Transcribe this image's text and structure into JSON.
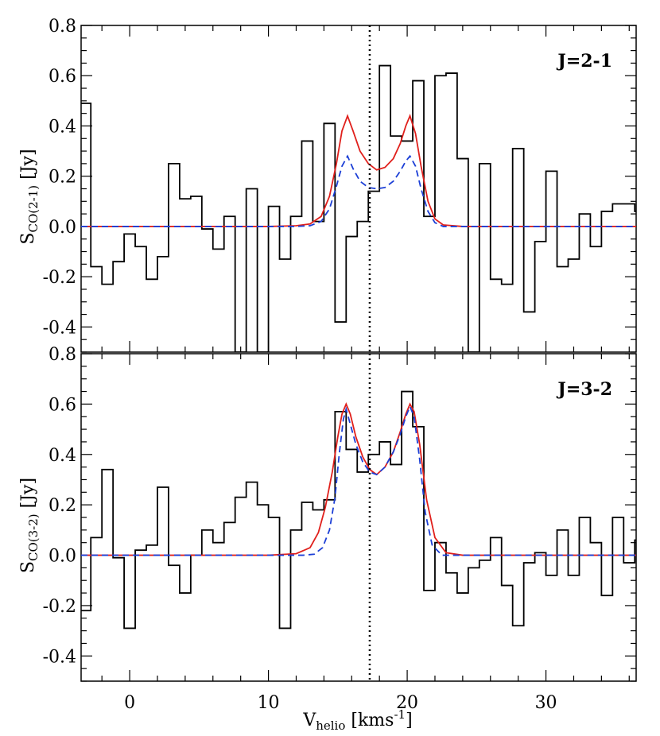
{
  "chart_data": [
    {
      "type": "line",
      "panel_label": "J=2-1",
      "ylabel": "S",
      "ylabel_sub": "CO(2-1)",
      "ylabel_unit": " [Jy]",
      "xlim": [
        -3.5,
        36.5
      ],
      "ylim": [
        -0.5,
        0.8
      ],
      "yticks": [
        "0.8",
        "0.6",
        "0.4",
        "0.2",
        "0.0",
        "-0.2",
        "-0.4"
      ],
      "ytick_values": [
        0.8,
        0.6,
        0.4,
        0.2,
        0.0,
        -0.2,
        -0.4
      ],
      "vline_x": 17.3,
      "series": [
        {
          "style": "step",
          "color": "#000000",
          "x": [
            -3.6,
            -2.8,
            -2.0,
            -1.2,
            -0.4,
            0.4,
            1.2,
            2.0,
            2.8,
            3.6,
            4.4,
            5.2,
            6.0,
            6.8,
            7.6,
            8.4,
            9.2,
            10.0,
            10.8,
            11.6,
            12.4,
            13.2,
            14.0,
            14.8,
            15.6,
            16.4,
            17.2,
            18.0,
            18.8,
            19.6,
            20.4,
            21.2,
            22.0,
            22.8,
            23.6,
            24.4,
            25.2,
            26.0,
            26.8,
            27.6,
            28.4,
            29.2,
            30.0,
            30.8,
            31.6,
            32.4,
            33.2,
            34.0,
            34.8,
            35.6,
            36.4
          ],
          "y": [
            0.49,
            -0.16,
            -0.23,
            -0.14,
            -0.03,
            -0.08,
            -0.21,
            -0.12,
            0.25,
            0.11,
            0.12,
            -0.01,
            -0.09,
            0.04,
            -0.5,
            0.15,
            -0.5,
            0.08,
            -0.13,
            0.04,
            0.34,
            0.02,
            0.41,
            -0.38,
            -0.04,
            0.02,
            0.14,
            0.64,
            0.36,
            0.34,
            0.58,
            0.04,
            0.6,
            0.61,
            0.27,
            -0.5,
            0.25,
            -0.21,
            -0.23,
            0.31,
            -0.34,
            -0.06,
            0.22,
            -0.16,
            -0.13,
            0.05,
            -0.08,
            0.06,
            0.09,
            0.09,
            0.06
          ],
          "end_x": 36.5
        },
        {
          "style": "solid",
          "color": "#e0201c",
          "x": [
            -3.5,
            10,
            12,
            13,
            13.8,
            14.4,
            14.9,
            15.3,
            15.7,
            16.1,
            16.6,
            17.2,
            17.8,
            18.4,
            19.0,
            19.5,
            19.9,
            20.2,
            20.6,
            21.0,
            21.5,
            22.0,
            22.6,
            24,
            36.5
          ],
          "y": [
            0.0,
            0.0,
            0.003,
            0.01,
            0.04,
            0.12,
            0.25,
            0.38,
            0.44,
            0.38,
            0.3,
            0.25,
            0.225,
            0.235,
            0.27,
            0.33,
            0.4,
            0.44,
            0.37,
            0.24,
            0.1,
            0.03,
            0.006,
            0.0,
            0.0
          ]
        },
        {
          "style": "dashed",
          "color": "#1c3fd6",
          "x": [
            -3.5,
            12,
            13,
            13.8,
            14.4,
            14.9,
            15.3,
            15.7,
            16.1,
            16.6,
            17.2,
            17.8,
            18.4,
            19.0,
            19.5,
            19.9,
            20.2,
            20.6,
            21.0,
            21.5,
            22.0,
            22.6,
            36.5
          ],
          "y": [
            0.0,
            0.0,
            0.003,
            0.02,
            0.07,
            0.16,
            0.24,
            0.28,
            0.23,
            0.18,
            0.155,
            0.15,
            0.155,
            0.18,
            0.22,
            0.26,
            0.28,
            0.24,
            0.15,
            0.06,
            0.015,
            0.0,
            0.0
          ]
        }
      ]
    },
    {
      "type": "line",
      "panel_label": "J=3-2",
      "ylabel": "S",
      "ylabel_sub": "CO(3-2)",
      "ylabel_unit": " [Jy]",
      "xlabel": "V",
      "xlabel_sub": "helio",
      "xlabel_unit": " [kms",
      "xlabel_sup": "-1",
      "xlabel_close": "]",
      "xlim": [
        -3.5,
        36.5
      ],
      "ylim": [
        -0.5,
        0.8
      ],
      "xticks": [
        "0",
        "10",
        "20",
        "30"
      ],
      "xtick_values": [
        0,
        10,
        20,
        30
      ],
      "yticks": [
        "0.8",
        "0.6",
        "0.4",
        "0.2",
        "0.0",
        "-0.2",
        "-0.4"
      ],
      "ytick_values": [
        0.8,
        0.6,
        0.4,
        0.2,
        0.0,
        -0.2,
        -0.4
      ],
      "vline_x": 17.3,
      "series": [
        {
          "style": "step",
          "color": "#000000",
          "x": [
            -3.6,
            -2.8,
            -2.0,
            -1.2,
            -0.4,
            0.4,
            1.2,
            2.0,
            2.8,
            3.6,
            4.4,
            5.2,
            6.0,
            6.8,
            7.6,
            8.4,
            9.2,
            10.0,
            10.8,
            11.6,
            12.4,
            13.2,
            14.0,
            14.8,
            15.6,
            16.4,
            17.2,
            18.0,
            18.8,
            19.6,
            20.4,
            21.2,
            22.0,
            22.8,
            23.6,
            24.4,
            25.2,
            26.0,
            26.8,
            27.6,
            28.4,
            29.2,
            30.0,
            30.8,
            31.6,
            32.4,
            33.2,
            34.0,
            34.8,
            35.6,
            36.4
          ],
          "y": [
            -0.22,
            0.07,
            0.34,
            -0.01,
            -0.29,
            0.02,
            0.04,
            0.27,
            -0.04,
            -0.15,
            0.0,
            0.1,
            0.05,
            0.13,
            0.23,
            0.29,
            0.2,
            0.15,
            -0.29,
            0.1,
            0.21,
            0.18,
            0.22,
            0.57,
            0.42,
            0.33,
            0.4,
            0.45,
            0.36,
            0.65,
            0.51,
            -0.14,
            0.05,
            -0.07,
            -0.15,
            -0.05,
            -0.02,
            0.07,
            -0.12,
            -0.28,
            -0.03,
            0.01,
            -0.08,
            0.1,
            -0.08,
            0.15,
            0.05,
            -0.16,
            0.15,
            -0.03,
            0.06
          ],
          "end_x": 36.5
        },
        {
          "style": "solid",
          "color": "#e0201c",
          "x": [
            -3.5,
            10,
            12,
            13,
            13.6,
            14.1,
            14.6,
            15.0,
            15.3,
            15.6,
            15.9,
            16.3,
            16.8,
            17.3,
            17.8,
            18.4,
            19.0,
            19.5,
            19.9,
            20.2,
            20.5,
            20.9,
            21.4,
            22.0,
            22.8,
            24,
            36.5
          ],
          "y": [
            0.0,
            0.0,
            0.006,
            0.03,
            0.09,
            0.19,
            0.33,
            0.47,
            0.56,
            0.6,
            0.56,
            0.47,
            0.39,
            0.34,
            0.32,
            0.35,
            0.41,
            0.49,
            0.56,
            0.6,
            0.57,
            0.44,
            0.22,
            0.07,
            0.01,
            0.0,
            0.0
          ]
        },
        {
          "style": "dashed",
          "color": "#1c3fd6",
          "x": [
            -3.5,
            12.5,
            13.3,
            13.9,
            14.4,
            14.8,
            15.1,
            15.4,
            15.6,
            15.9,
            16.3,
            16.8,
            17.3,
            17.8,
            18.4,
            19.0,
            19.5,
            19.9,
            20.2,
            20.5,
            20.9,
            21.3,
            21.8,
            22.5,
            36.5
          ],
          "y": [
            0.0,
            0.0,
            0.004,
            0.03,
            0.1,
            0.23,
            0.4,
            0.54,
            0.58,
            0.52,
            0.44,
            0.37,
            0.33,
            0.32,
            0.35,
            0.41,
            0.48,
            0.55,
            0.59,
            0.55,
            0.38,
            0.17,
            0.04,
            0.0,
            0.0
          ]
        }
      ]
    }
  ]
}
